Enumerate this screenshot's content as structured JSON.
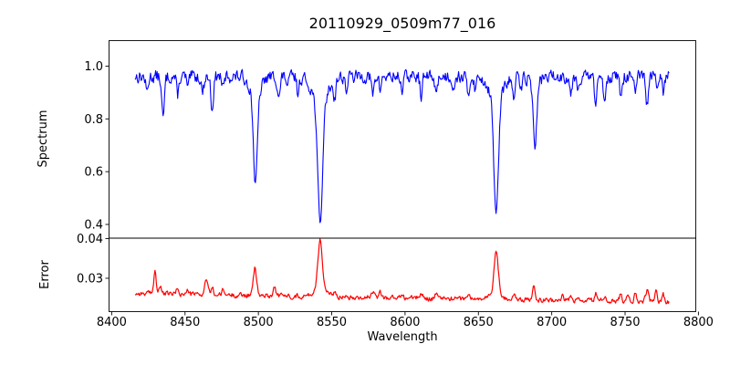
{
  "title": "20110929_0509m77_016",
  "colors": {
    "spectrum_line": "#0000ff",
    "error_line": "#ff0000",
    "axis": "#000000",
    "background": "#ffffff"
  },
  "chart_data": [
    {
      "type": "line",
      "panel": "spectrum",
      "title": "20110929_0509m77_016",
      "ylabel": "Spectrum",
      "legend": "none",
      "grid": false,
      "color": "#0000ff",
      "xlim": [
        8398.2,
        8798.2
      ],
      "ylim": [
        0.348,
        1.0966
      ],
      "yticks": [
        0.4,
        0.6,
        0.8,
        1.0
      ],
      "ytick_labels": [
        "0.4",
        "0.6",
        "0.8",
        "1.0"
      ],
      "data_range": [
        8416,
        8780
      ],
      "step": 0.5,
      "continuum": 0.96,
      "noise_amp": 0.022,
      "noise_phi": 0.35,
      "noise_seed": 13,
      "lines_note": "absorption lines as [center_wavelength, depth, sigma]; Ca II triplet 8498/8542/8662 dominant, minima ~0.54, ~0.40, ~0.43; Fe line 8688 to ~0.70",
      "lines": [
        [
          8498.0,
          0.335,
          1.3
        ],
        [
          8498.0,
          0.075,
          3.5
        ],
        [
          8542.1,
          0.46,
          1.6
        ],
        [
          8542.1,
          0.1,
          5.0
        ],
        [
          8662.1,
          0.43,
          1.5
        ],
        [
          8662.1,
          0.09,
          4.5
        ],
        [
          8688.6,
          0.235,
          1.2
        ],
        [
          8688.6,
          0.025,
          3.0
        ],
        [
          8424.0,
          0.06,
          0.8
        ],
        [
          8435.0,
          0.16,
          0.9
        ],
        [
          8445.0,
          0.07,
          0.8
        ],
        [
          8452.0,
          0.05,
          0.7
        ],
        [
          8462.0,
          0.06,
          0.8
        ],
        [
          8468.5,
          0.12,
          0.9
        ],
        [
          8476.0,
          0.05,
          0.7
        ],
        [
          8514.0,
          0.08,
          0.9
        ],
        [
          8520.0,
          0.04,
          0.7
        ],
        [
          8527.0,
          0.06,
          0.8
        ],
        [
          8552.0,
          0.07,
          0.8
        ],
        [
          8560.0,
          0.05,
          0.8
        ],
        [
          8578.0,
          0.07,
          0.9
        ],
        [
          8583.0,
          0.05,
          0.7
        ],
        [
          8598.0,
          0.05,
          0.8
        ],
        [
          8611.0,
          0.07,
          0.8
        ],
        [
          8621.0,
          0.06,
          0.8
        ],
        [
          8633.0,
          0.04,
          0.7
        ],
        [
          8643.0,
          0.07,
          0.9
        ],
        [
          8648.0,
          0.05,
          0.7
        ],
        [
          8674.0,
          0.08,
          0.9
        ],
        [
          8679.0,
          0.05,
          0.7
        ],
        [
          8713.0,
          0.06,
          0.8
        ],
        [
          8718.0,
          0.04,
          0.7
        ],
        [
          8730.0,
          0.1,
          0.9
        ],
        [
          8736.0,
          0.08,
          0.8
        ],
        [
          8747.0,
          0.07,
          0.8
        ],
        [
          8757.0,
          0.07,
          0.8
        ],
        [
          8765.0,
          0.11,
          0.9
        ],
        [
          8772.0,
          0.06,
          0.8
        ],
        [
          8776.0,
          0.06,
          0.7
        ]
      ]
    },
    {
      "type": "line",
      "panel": "error",
      "ylabel": "Error",
      "xlabel": "Wavelength",
      "legend": "none",
      "grid": false,
      "color": "#ff0000",
      "xlim": [
        8398.2,
        8798.2
      ],
      "ylim": [
        0.0216,
        0.0401
      ],
      "yticks": [
        0.03,
        0.04
      ],
      "ytick_labels": [
        "0.03",
        "0.04"
      ],
      "xticks": [
        8400,
        8450,
        8500,
        8550,
        8600,
        8650,
        8700,
        8750,
        8800
      ],
      "xtick_labels": [
        "8400",
        "8450",
        "8500",
        "8550",
        "8600",
        "8650",
        "8700",
        "8750",
        "8800"
      ],
      "data_range": [
        8416,
        8780
      ],
      "step": 0.5,
      "baseline_start": 0.0262,
      "baseline_end": 0.024,
      "noise_amp": 0.00055,
      "noise_phi": 0.45,
      "noise_seed": 99,
      "peaks_note": "error spikes as [center_wavelength, height_above_baseline, sigma]; peaks at Ca II lines, max ~0.040 at 8542, ~0.037 at 8662",
      "peaks": [
        [
          8429.5,
          0.006,
          0.8
        ],
        [
          8433.0,
          0.0018,
          0.8
        ],
        [
          8445.0,
          0.0015,
          0.8
        ],
        [
          8452.0,
          0.001,
          0.7
        ],
        [
          8464.5,
          0.004,
          1.0
        ],
        [
          8468.5,
          0.0018,
          0.8
        ],
        [
          8476.0,
          0.0012,
          0.7
        ],
        [
          8497.7,
          0.0068,
          1.1
        ],
        [
          8511.0,
          0.0022,
          0.9
        ],
        [
          8542.1,
          0.0125,
          1.5
        ],
        [
          8542.1,
          0.0018,
          4.0
        ],
        [
          8552.0,
          0.0012,
          0.8
        ],
        [
          8560.0,
          0.0008,
          0.8
        ],
        [
          8578.0,
          0.0012,
          0.9
        ],
        [
          8583.0,
          0.0015,
          0.7
        ],
        [
          8598.0,
          0.0008,
          0.8
        ],
        [
          8611.0,
          0.0013,
          0.8
        ],
        [
          8621.0,
          0.001,
          0.8
        ],
        [
          8643.0,
          0.0012,
          0.9
        ],
        [
          8662.1,
          0.0105,
          1.4
        ],
        [
          8662.1,
          0.0015,
          4.0
        ],
        [
          8674.0,
          0.0012,
          0.9
        ],
        [
          8687.8,
          0.0037,
          1.0
        ],
        [
          8707.0,
          0.0012,
          0.8
        ],
        [
          8713.0,
          0.001,
          0.8
        ],
        [
          8730.0,
          0.0018,
          0.9
        ],
        [
          8736.0,
          0.0012,
          0.8
        ],
        [
          8747.0,
          0.002,
          0.8
        ],
        [
          8752.0,
          0.0015,
          0.7
        ],
        [
          8757.0,
          0.0022,
          0.8
        ],
        [
          8765.0,
          0.003,
          0.9
        ],
        [
          8771.0,
          0.0028,
          0.8
        ],
        [
          8776.0,
          0.0018,
          0.7
        ]
      ]
    }
  ]
}
